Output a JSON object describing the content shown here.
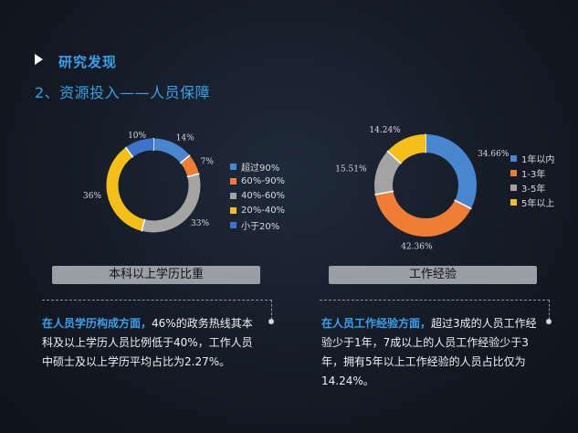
{
  "header": {
    "title": "研究发现",
    "subtitle": "2、资源投入——人员保障"
  },
  "chart_data": [
    {
      "type": "pie",
      "variant": "donut",
      "title": "本科以上学历比重",
      "categories": [
        "超过90%",
        "60%-90%",
        "40%-60%",
        "20%-40%",
        "小于20%"
      ],
      "values": [
        14,
        7,
        33,
        36,
        10
      ],
      "labels": [
        "14%",
        "7%",
        "33%",
        "36%",
        "10%"
      ],
      "colors": [
        "#4a86d0",
        "#ef7d33",
        "#a4a4a4",
        "#f5bf18",
        "#3d73c8"
      ],
      "legend_position": "right"
    },
    {
      "type": "pie",
      "variant": "donut",
      "title": "工作经验",
      "categories": [
        "1年以内",
        "1-3年",
        "3-5年",
        "5年以上"
      ],
      "values": [
        34.66,
        42.36,
        15.51,
        14.24
      ],
      "labels": [
        "34.66%",
        "42.36%",
        "15.51%",
        "14.24%"
      ],
      "colors": [
        "#4a86d0",
        "#ef7d33",
        "#a4a4a4",
        "#f5bf18"
      ],
      "legend_position": "right"
    }
  ],
  "findings": [
    {
      "highlight": "在人员学历构成方面，",
      "text": "46%的政务热线其本科及以上学历人员比例低于40%，工作人员中硕士及以上学历平均占比为2.27%。"
    },
    {
      "highlight": "在人员工作经验方面，",
      "text": "超过3成的人员工作经验少于1年，7成以上的人员工作经验少于3年，拥有5年以上工作经验的人员占比仅为14.24%。"
    }
  ]
}
